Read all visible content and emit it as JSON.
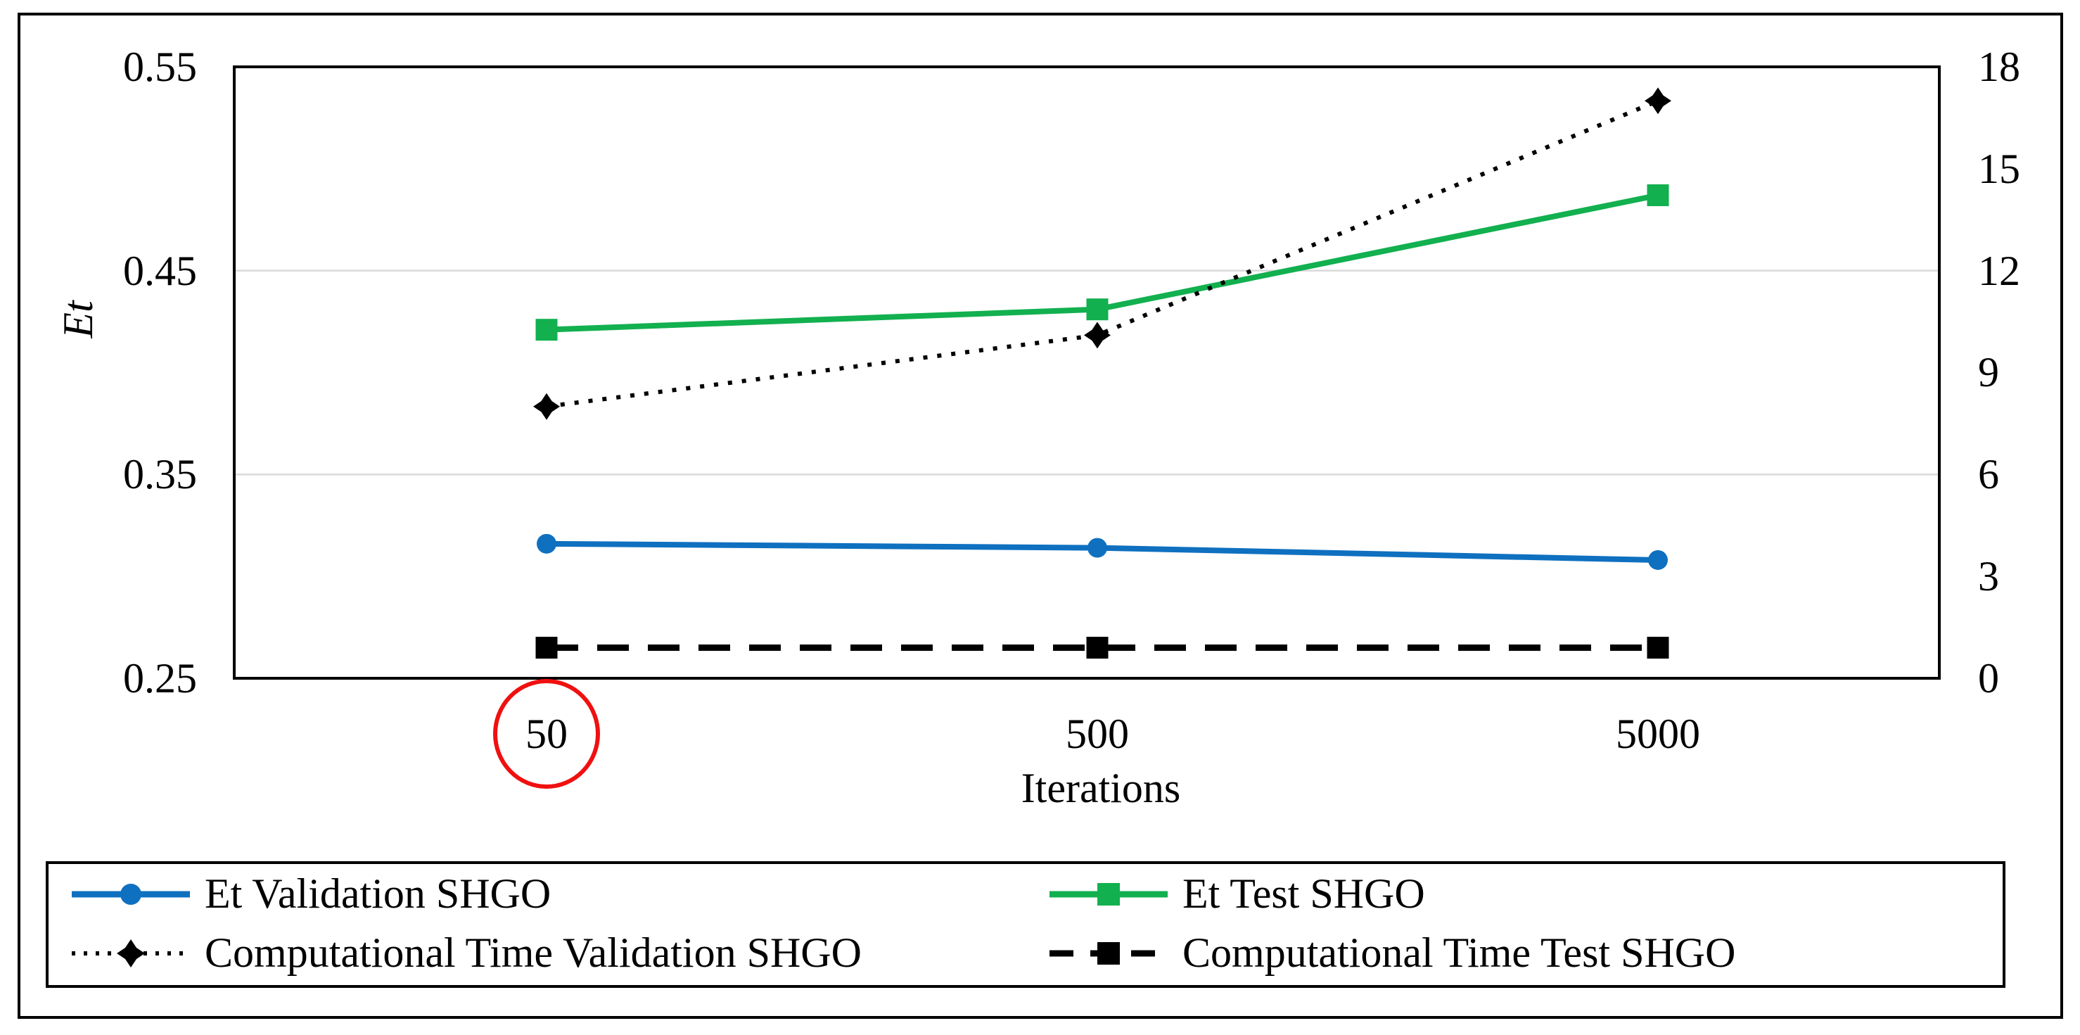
{
  "figure": {
    "background": "#FFFFFF",
    "border_color": "#000000"
  },
  "chart_data": {
    "type": "line",
    "title": "",
    "x_categories": [
      "50",
      "500",
      "5000"
    ],
    "xlabel": "Iterations",
    "left_axis": {
      "label": "Et",
      "ticks": [
        "0.55",
        "0.45",
        "0.35",
        "0.25"
      ],
      "min": 0.25,
      "max": 0.55,
      "gridline_values": [
        0.45,
        0.35
      ]
    },
    "right_axis": {
      "ticks": [
        "18",
        "15",
        "12",
        "9",
        "6",
        "3",
        "0"
      ],
      "min": 0,
      "max": 18
    },
    "grid": "horizontal-light",
    "legend_position": "bottom",
    "series": [
      {
        "name": "Et Validation SHGO",
        "axis": "left",
        "color": "#0F70C0",
        "line_style": "solid",
        "marker": "circle",
        "values": [
          0.316,
          0.314,
          0.308
        ]
      },
      {
        "name": "Et Test SHGO",
        "axis": "left",
        "color": "#12B04F",
        "line_style": "solid",
        "marker": "square",
        "values": [
          0.421,
          0.431,
          0.487
        ]
      },
      {
        "name": "Computational Time Validation SHGO",
        "axis": "right",
        "color": "#000000",
        "line_style": "dotted",
        "marker": "star",
        "values": [
          8,
          10.1,
          17
        ]
      },
      {
        "name": "Computational Time Test SHGO",
        "axis": "right",
        "color": "#000000",
        "line_style": "dashed",
        "marker": "square",
        "values": [
          0.9,
          0.9,
          0.9
        ]
      }
    ],
    "annotation": {
      "shape": "ellipse",
      "around_x_tick": "50",
      "color": "#F01010"
    }
  }
}
